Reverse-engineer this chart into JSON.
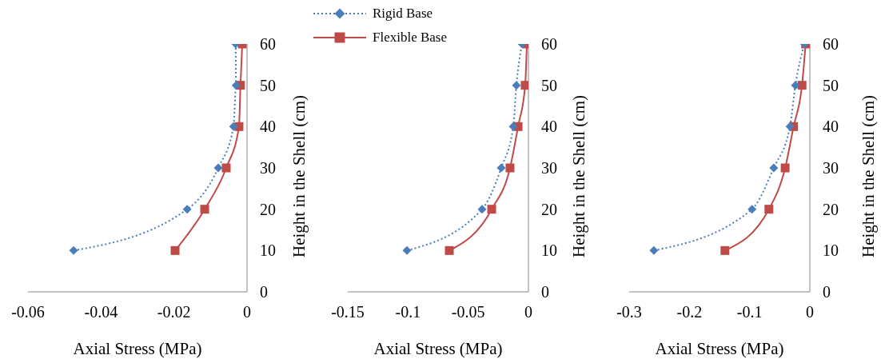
{
  "chart_data": [
    {
      "type": "line",
      "xlabel": "Axial Stress (MPa)",
      "ylabel": "Height in the Shell (cm)",
      "xlim": [
        -0.06,
        0
      ],
      "xticks": [
        -0.06,
        -0.04,
        -0.02,
        0
      ],
      "ylim": [
        0,
        60
      ],
      "yticks": [
        0,
        10,
        20,
        30,
        40,
        50,
        60
      ],
      "grid": false,
      "legend": false,
      "series": [
        {
          "color": "#4a7ebb",
          "marker": "diamond",
          "line_style": "dotted",
          "x": [
            -0.0475,
            -0.0164,
            -0.0079,
            -0.0037,
            -0.003,
            -0.0031
          ],
          "values": [
            10,
            20,
            30,
            40,
            50,
            60
          ]
        },
        {
          "color": "#be4b48",
          "marker": "square",
          "line_style": "solid",
          "x": [
            -0.0197,
            -0.0116,
            -0.0057,
            -0.0022,
            -0.0018,
            -0.0013
          ],
          "values": [
            10,
            20,
            30,
            40,
            50,
            60
          ]
        }
      ]
    },
    {
      "type": "line",
      "xlabel": "Axial Stress (MPa)",
      "ylabel": "Height in the Shell (cm)",
      "xlim": [
        -0.15,
        0
      ],
      "xticks": [
        -0.15,
        -0.1,
        -0.05,
        0
      ],
      "ylim": [
        0,
        60
      ],
      "yticks": [
        0,
        10,
        20,
        30,
        40,
        50,
        60
      ],
      "grid": false,
      "legend": "top left",
      "series": [
        {
          "name": "Rigid Base",
          "color": "#4a7ebb",
          "marker": "diamond",
          "line_style": "dotted",
          "x": [
            -0.1009,
            -0.0385,
            -0.0226,
            -0.0126,
            -0.01,
            -0.0053
          ],
          "values": [
            10,
            20,
            30,
            40,
            50,
            60
          ]
        },
        {
          "name": "Flexible Base",
          "color": "#be4b48",
          "marker": "square",
          "line_style": "solid",
          "x": [
            -0.0657,
            -0.0305,
            -0.0153,
            -0.0086,
            -0.0027,
            -0.0013
          ],
          "values": [
            10,
            20,
            30,
            40,
            50,
            60
          ]
        }
      ]
    },
    {
      "type": "line",
      "xlabel": "Axial Stress (MPa)",
      "ylabel": "Height in the Shell (cm)",
      "xlim": [
        -0.3,
        0
      ],
      "xticks": [
        -0.3,
        -0.2,
        -0.1,
        0
      ],
      "ylim": [
        0,
        60
      ],
      "yticks": [
        0,
        10,
        20,
        30,
        40,
        50,
        60
      ],
      "grid": false,
      "legend": false,
      "series": [
        {
          "color": "#4a7ebb",
          "marker": "diamond",
          "line_style": "dotted",
          "x": [
            -0.259,
            -0.096,
            -0.06,
            -0.033,
            -0.024,
            -0.009
          ],
          "values": [
            10,
            20,
            30,
            40,
            50,
            60
          ]
        },
        {
          "color": "#be4b48",
          "marker": "square",
          "line_style": "solid",
          "x": [
            -0.141,
            -0.068,
            -0.041,
            -0.027,
            -0.013,
            -0.007
          ],
          "values": [
            10,
            20,
            30,
            40,
            50,
            60
          ]
        }
      ]
    }
  ]
}
